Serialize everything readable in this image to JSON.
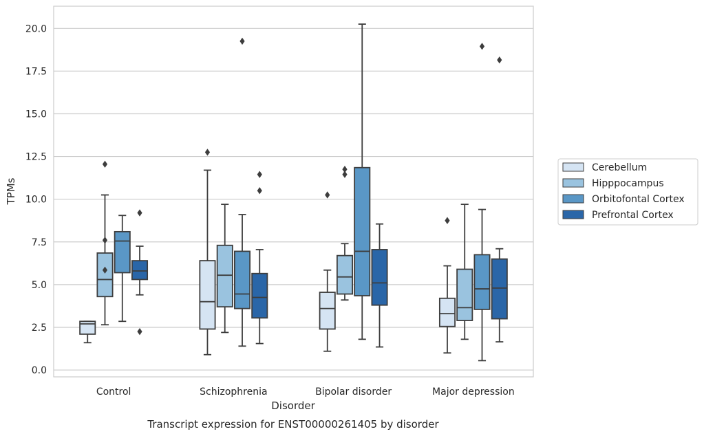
{
  "chart_data": {
    "type": "box",
    "title": "",
    "xlabel": "Disorder",
    "ylabel": "TPMs",
    "caption": "Transcript expression for ENST00000261405 by disorder",
    "ylim": [
      -0.4,
      21.3
    ],
    "yticks": [
      0.0,
      2.5,
      5.0,
      7.5,
      10.0,
      12.5,
      15.0,
      17.5,
      20.0
    ],
    "ytick_labels": [
      "0.0",
      "2.5",
      "5.0",
      "7.5",
      "10.0",
      "12.5",
      "15.0",
      "17.5",
      "20.0"
    ],
    "grid": "horizontal",
    "legend_position": "right",
    "categories": [
      "Control",
      "Schizophrenia",
      "Bipolar disorder",
      "Major depression"
    ],
    "series": [
      {
        "name": "Cerebellum",
        "color": "#d5e4f3",
        "boxes": [
          {
            "whislo": 1.6,
            "q1": 2.1,
            "med": 2.7,
            "q3": 2.85,
            "whishi": 2.85,
            "fliers": []
          },
          {
            "whislo": 0.9,
            "q1": 2.4,
            "med": 4.0,
            "q3": 6.4,
            "whishi": 11.7,
            "fliers": [
              12.75
            ]
          },
          {
            "whislo": 1.1,
            "q1": 2.4,
            "med": 3.6,
            "q3": 4.55,
            "whishi": 5.85,
            "fliers": [
              10.25
            ]
          },
          {
            "whislo": 1.0,
            "q1": 2.55,
            "med": 3.3,
            "q3": 4.2,
            "whishi": 6.1,
            "fliers": [
              8.75
            ]
          }
        ]
      },
      {
        "name": "Hipppocampus",
        "color": "#9ac3df",
        "boxes": [
          {
            "whislo": 2.65,
            "q1": 4.3,
            "med": 5.3,
            "q3": 6.85,
            "whishi": 10.25,
            "fliers": [
              12.05,
              7.6,
              5.85
            ]
          },
          {
            "whislo": 2.2,
            "q1": 3.7,
            "med": 5.55,
            "q3": 7.3,
            "whishi": 9.7,
            "fliers": []
          },
          {
            "whislo": 4.1,
            "q1": 4.45,
            "med": 5.45,
            "q3": 6.7,
            "whishi": 7.4,
            "fliers": [
              11.75,
              11.45
            ]
          },
          {
            "whislo": 1.8,
            "q1": 2.9,
            "med": 3.65,
            "q3": 5.9,
            "whishi": 9.7,
            "fliers": []
          }
        ]
      },
      {
        "name": "Orbitofontal Cortex",
        "color": "#5a97c6",
        "boxes": [
          {
            "whislo": 2.85,
            "q1": 5.7,
            "med": 7.55,
            "q3": 8.1,
            "whishi": 9.05,
            "fliers": []
          },
          {
            "whislo": 1.4,
            "q1": 3.6,
            "med": 4.45,
            "q3": 6.95,
            "whishi": 9.1,
            "fliers": [
              19.25
            ]
          },
          {
            "whislo": 1.8,
            "q1": 4.35,
            "med": 6.95,
            "q3": 11.85,
            "whishi": 20.25,
            "fliers": []
          },
          {
            "whislo": 0.55,
            "q1": 3.55,
            "med": 4.75,
            "q3": 6.75,
            "whishi": 9.4,
            "fliers": [
              18.95
            ]
          }
        ]
      },
      {
        "name": "Prefrontal Cortex",
        "color": "#2a66a8",
        "boxes": [
          {
            "whislo": 4.4,
            "q1": 5.3,
            "med": 5.8,
            "q3": 6.4,
            "whishi": 7.25,
            "fliers": [
              9.2,
              2.25
            ]
          },
          {
            "whislo": 1.55,
            "q1": 3.05,
            "med": 4.25,
            "q3": 5.65,
            "whishi": 7.05,
            "fliers": [
              11.45,
              10.5
            ]
          },
          {
            "whislo": 1.35,
            "q1": 3.8,
            "med": 5.1,
            "q3": 7.05,
            "whishi": 8.55,
            "fliers": []
          },
          {
            "whislo": 1.65,
            "q1": 3.0,
            "med": 4.8,
            "q3": 6.5,
            "whishi": 7.1,
            "fliers": [
              18.15
            ]
          }
        ]
      }
    ]
  },
  "colors": {
    "box_edge": "#3d3d3d",
    "grid": "#cccccc",
    "axes_frame": "#cccccc",
    "text": "#262626"
  }
}
